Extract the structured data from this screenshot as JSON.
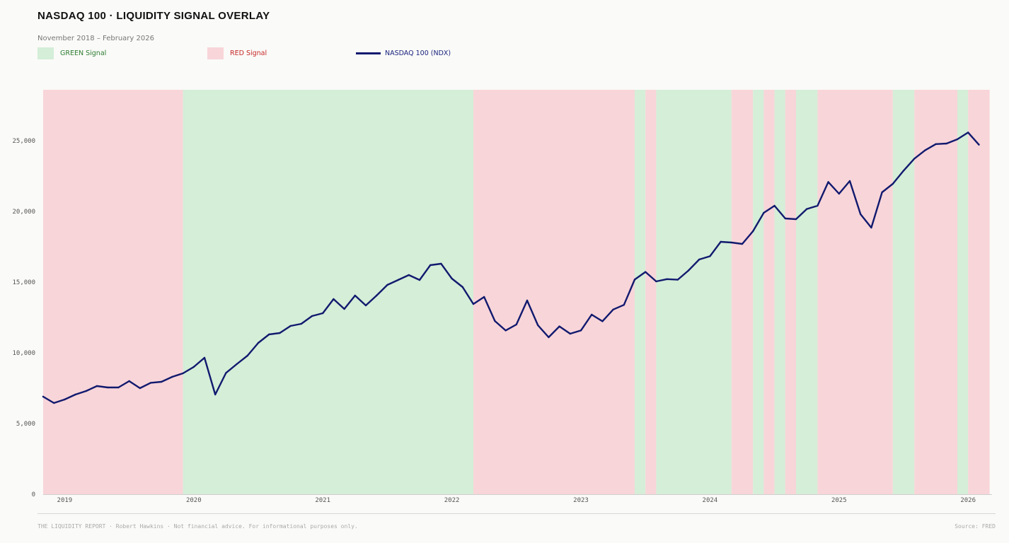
{
  "header": {
    "title": "NASDAQ 100  ·  LIQUIDITY SIGNAL OVERLAY",
    "subtitle": "November 2018 – February 2026"
  },
  "legend": [
    {
      "label": "GREEN Signal",
      "color": "#d4eed8",
      "text_color": "#2e7d32",
      "kind": "swatch"
    },
    {
      "label": "RED Signal",
      "color": "#f8d5d9",
      "text_color": "#c62828",
      "kind": "swatch"
    },
    {
      "label": "NASDAQ 100 (NDX)",
      "color": "#111a6e",
      "text_color": "#1a237e",
      "kind": "line"
    }
  ],
  "footer": {
    "left": "THE LIQUIDITY REPORT  ·  Robert Hawkins  ·  Not financial advice. For informational purposes only.",
    "right": "Source: FRED"
  },
  "chart_data": {
    "type": "line",
    "x_start": "2018-11",
    "x_end": "2026-02",
    "y_ticks": [
      0,
      5000,
      10000,
      15000,
      20000,
      25000
    ],
    "y_tick_labels": [
      "0",
      "5,000",
      "10,000",
      "15,000",
      "20,000",
      "25,000"
    ],
    "ylim": [
      0,
      28600
    ],
    "x_ticks": [
      "2019",
      "2020",
      "2021",
      "2022",
      "2023",
      "2024",
      "2025",
      "2026"
    ],
    "grid": false,
    "colors": {
      "green": "#d4eed8",
      "red": "#f8d5d9",
      "line": "#111a6e"
    },
    "signal_regions": [
      {
        "start": "2018-11",
        "end": "2019-12",
        "signal": "RED"
      },
      {
        "start": "2019-12",
        "end": "2022-03",
        "signal": "GREEN"
      },
      {
        "start": "2022-03",
        "end": "2023-06",
        "signal": "RED"
      },
      {
        "start": "2023-06",
        "end": "2023-07",
        "signal": "GREEN"
      },
      {
        "start": "2023-07",
        "end": "2023-08",
        "signal": "RED"
      },
      {
        "start": "2023-08",
        "end": "2024-03",
        "signal": "GREEN"
      },
      {
        "start": "2024-03",
        "end": "2024-05",
        "signal": "RED"
      },
      {
        "start": "2024-05",
        "end": "2024-06",
        "signal": "GREEN"
      },
      {
        "start": "2024-06",
        "end": "2024-07",
        "signal": "RED"
      },
      {
        "start": "2024-07",
        "end": "2024-08",
        "signal": "GREEN"
      },
      {
        "start": "2024-08",
        "end": "2024-09",
        "signal": "RED"
      },
      {
        "start": "2024-09",
        "end": "2024-11",
        "signal": "GREEN"
      },
      {
        "start": "2024-11",
        "end": "2025-06",
        "signal": "RED"
      },
      {
        "start": "2025-06",
        "end": "2025-08",
        "signal": "GREEN"
      },
      {
        "start": "2025-08",
        "end": "2025-12",
        "signal": "RED"
      },
      {
        "start": "2025-12",
        "end": "2026-01",
        "signal": "GREEN"
      },
      {
        "start": "2026-01",
        "end": "2026-03",
        "signal": "RED"
      }
    ],
    "series": [
      {
        "name": "NASDAQ 100 (NDX)",
        "x": [
          "2018-11",
          "2018-12",
          "2019-01",
          "2019-02",
          "2019-03",
          "2019-04",
          "2019-05",
          "2019-06",
          "2019-07",
          "2019-08",
          "2019-09",
          "2019-10",
          "2019-11",
          "2019-12",
          "2020-01",
          "2020-02",
          "2020-03",
          "2020-04",
          "2020-05",
          "2020-06",
          "2020-07",
          "2020-08",
          "2020-09",
          "2020-10",
          "2020-11",
          "2020-12",
          "2021-01",
          "2021-02",
          "2021-03",
          "2021-04",
          "2021-05",
          "2021-06",
          "2021-07",
          "2021-08",
          "2021-09",
          "2021-10",
          "2021-11",
          "2021-12",
          "2022-01",
          "2022-02",
          "2022-03",
          "2022-04",
          "2022-05",
          "2022-06",
          "2022-07",
          "2022-08",
          "2022-09",
          "2022-10",
          "2022-11",
          "2022-12",
          "2023-01",
          "2023-02",
          "2023-03",
          "2023-04",
          "2023-05",
          "2023-06",
          "2023-07",
          "2023-08",
          "2023-09",
          "2023-10",
          "2023-11",
          "2023-12",
          "2024-01",
          "2024-02",
          "2024-03",
          "2024-04",
          "2024-05",
          "2024-06",
          "2024-07",
          "2024-08",
          "2024-09",
          "2024-10",
          "2024-11",
          "2024-12",
          "2025-01",
          "2025-02",
          "2025-03",
          "2025-04",
          "2025-05",
          "2025-06",
          "2025-07",
          "2025-08",
          "2025-09",
          "2025-10",
          "2025-11",
          "2025-12",
          "2026-01",
          "2026-02"
        ],
        "values": [
          6900,
          6450,
          6700,
          7050,
          7300,
          7650,
          7550,
          7550,
          8000,
          7500,
          7880,
          7950,
          8300,
          8550,
          9000,
          9650,
          7050,
          8580,
          9200,
          9800,
          10700,
          11300,
          11400,
          11900,
          12050,
          12600,
          12800,
          13800,
          13100,
          14050,
          13350,
          14050,
          14800,
          15150,
          15500,
          15150,
          16200,
          16300,
          15250,
          14650,
          13450,
          13950,
          12250,
          11580,
          12000,
          13700,
          11950,
          11100,
          11870,
          11350,
          11580,
          12700,
          12230,
          13060,
          13390,
          15180,
          15720,
          15050,
          15210,
          15170,
          15820,
          16600,
          16830,
          17850,
          17800,
          17700,
          18600,
          19900,
          20400,
          19500,
          19450,
          20170,
          20400,
          22080,
          21250,
          22150,
          19800,
          18850,
          21350,
          21950,
          22880,
          23730,
          24320,
          24760,
          24800,
          25100,
          25580,
          24720
        ]
      }
    ]
  }
}
